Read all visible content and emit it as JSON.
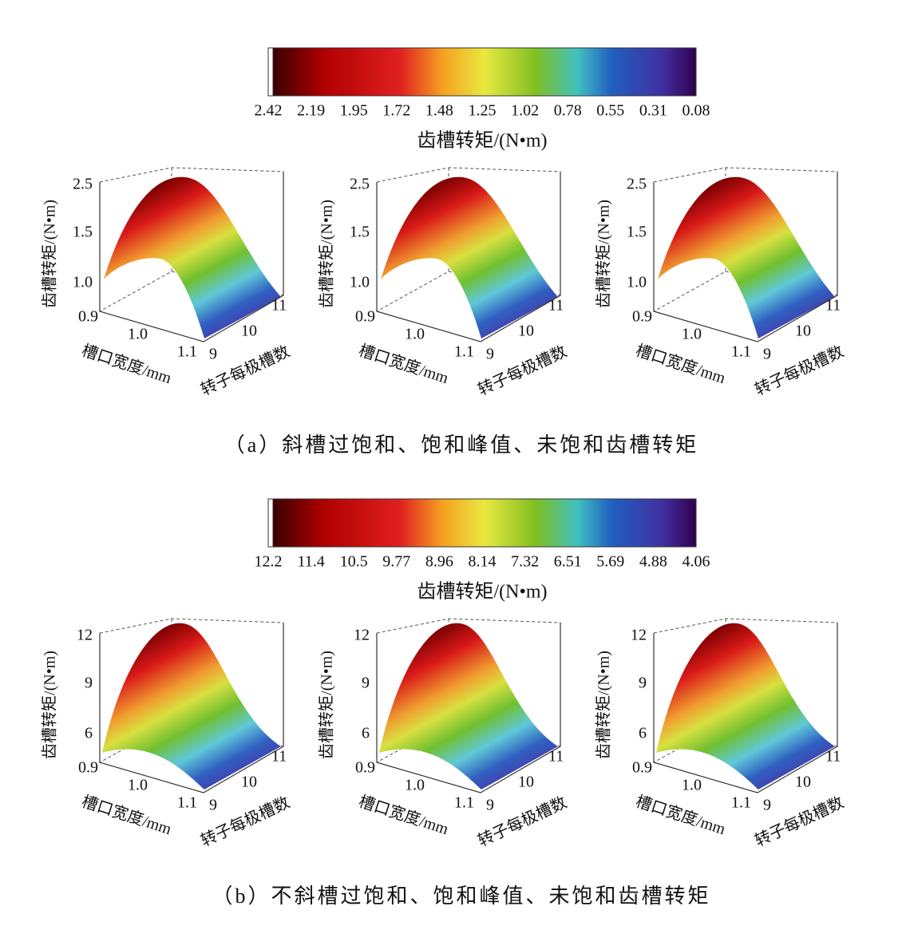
{
  "panels": [
    {
      "colorbar": {
        "ticks": [
          "2.42",
          "2.19",
          "1.95",
          "1.72",
          "1.48",
          "1.25",
          "1.02",
          "0.78",
          "0.55",
          "0.31",
          "0.08"
        ],
        "title": "齿槽转矩/(N•m)"
      },
      "plots": [
        {
          "z_label": "齿槽转矩/(N•m)",
          "z_ticks": [
            "2.5",
            "1.5",
            "1.0"
          ],
          "x_label": "槽口宽度/mm",
          "x_ticks": [
            "0.9",
            "1.0",
            "1.1"
          ],
          "y_label": "转子每极槽数",
          "y_ticks": [
            "9",
            "10",
            "11"
          ]
        },
        {
          "z_label": "齿槽转矩/(N•m)",
          "z_ticks": [
            "2.5",
            "1.5",
            "1.0"
          ],
          "x_label": "槽口宽度/mm",
          "x_ticks": [
            "0.9",
            "1.0",
            "1.1"
          ],
          "y_label": "转子每极槽数",
          "y_ticks": [
            "9",
            "10",
            "11"
          ]
        },
        {
          "z_label": "齿槽转矩/(N•m)",
          "z_ticks": [
            "2.5",
            "1.5",
            "1.0"
          ],
          "x_label": "槽口宽度/mm",
          "x_ticks": [
            "0.9",
            "1.0",
            "1.1"
          ],
          "y_label": "转子每极槽数",
          "y_ticks": [
            "9",
            "10",
            "11"
          ]
        }
      ],
      "caption": "（a）斜槽过饱和、饱和峰值、未饱和齿槽转矩"
    },
    {
      "colorbar": {
        "ticks": [
          "12.2",
          "11.4",
          "10.5",
          "9.77",
          "8.96",
          "8.14",
          "7.32",
          "6.51",
          "5.69",
          "4.88",
          "4.06"
        ],
        "title": "齿槽转矩/(N•m)"
      },
      "plots": [
        {
          "z_label": "齿槽转矩/(N•m)",
          "z_ticks": [
            "12",
            "9",
            "6"
          ],
          "x_label": "槽口宽度/mm",
          "x_ticks": [
            "0.9",
            "1.0",
            "1.1"
          ],
          "y_label": "转子每极槽数",
          "y_ticks": [
            "9",
            "10",
            "11"
          ]
        },
        {
          "z_label": "齿槽转矩/(N•m)",
          "z_ticks": [
            "12",
            "9",
            "6"
          ],
          "x_label": "槽口宽度/mm",
          "x_ticks": [
            "0.9",
            "1.0",
            "1.1"
          ],
          "y_label": "转子每极槽数",
          "y_ticks": [
            "9",
            "10",
            "11"
          ]
        },
        {
          "z_label": "齿槽转矩/(N•m)",
          "z_ticks": [
            "12",
            "9",
            "6"
          ],
          "x_label": "槽口宽度/mm",
          "x_ticks": [
            "0.9",
            "1.0",
            "1.1"
          ],
          "y_label": "转子每极槽数",
          "y_ticks": [
            "9",
            "10",
            "11"
          ]
        }
      ],
      "caption": "（b）不斜槽过饱和、饱和峰值、未饱和齿槽转矩"
    }
  ]
}
